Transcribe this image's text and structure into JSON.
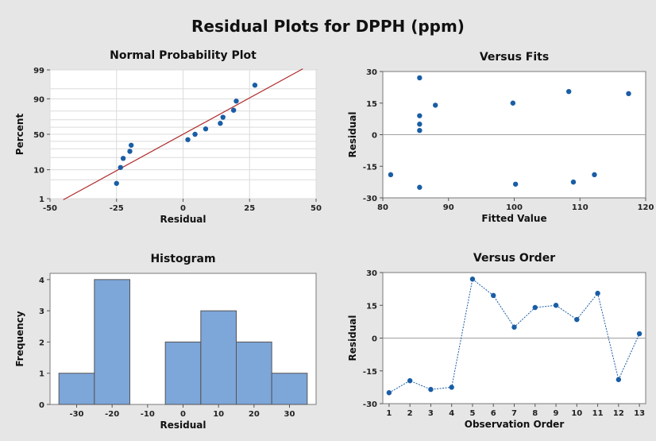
{
  "title": "Residual Plots for DPPH (ppm)",
  "chart_data": [
    {
      "type": "scatter",
      "title": "Normal Probability Plot",
      "xlabel": "Residual",
      "ylabel": "Percent",
      "xlim": [
        -50,
        50
      ],
      "xticks": [
        -50,
        -25,
        0,
        25,
        50
      ],
      "yticks": [
        1,
        10,
        50,
        90,
        99
      ],
      "ytick_labels": [
        "1",
        "10",
        "50",
        "90",
        "99"
      ],
      "scale_y": "normal probability",
      "grid": true,
      "points": [
        {
          "x": -25.0,
          "y": 3.8
        },
        {
          "x": -23.5,
          "y": 11.5
        },
        {
          "x": -22.5,
          "y": 19.2
        },
        {
          "x": -20.0,
          "y": 26.9
        },
        {
          "x": -19.5,
          "y": 34.6
        },
        {
          "x": 1.8,
          "y": 42.3
        },
        {
          "x": 4.5,
          "y": 50.0
        },
        {
          "x": 8.5,
          "y": 57.7
        },
        {
          "x": 14.0,
          "y": 65.4
        },
        {
          "x": 15.0,
          "y": 73.1
        },
        {
          "x": 19.0,
          "y": 80.8
        },
        {
          "x": 20.0,
          "y": 88.5
        },
        {
          "x": 27.0,
          "y": 96.2
        }
      ],
      "fit_line": {
        "x": [
          -45,
          45
        ],
        "y": [
          0.9,
          99.1
        ]
      },
      "colors": {
        "points": "#1a5da6",
        "line": "#b02a2a"
      }
    },
    {
      "type": "scatter",
      "title": "Versus Fits",
      "xlabel": "Fitted Value",
      "ylabel": "Residual",
      "xlim": [
        80,
        120
      ],
      "ylim": [
        -30,
        30
      ],
      "xticks": [
        80,
        90,
        100,
        110,
        120
      ],
      "yticks": [
        -30,
        -15,
        0,
        15,
        30
      ],
      "reference_line_y": 0,
      "points": [
        {
          "x": 81.2,
          "y": -19.0
        },
        {
          "x": 85.6,
          "y": 27.0
        },
        {
          "x": 85.6,
          "y": 9.0
        },
        {
          "x": 85.6,
          "y": 5.0
        },
        {
          "x": 85.6,
          "y": 2.0
        },
        {
          "x": 85.6,
          "y": -25.0
        },
        {
          "x": 88.0,
          "y": 14.0
        },
        {
          "x": 99.8,
          "y": 15.0
        },
        {
          "x": 100.2,
          "y": -23.5
        },
        {
          "x": 108.3,
          "y": 20.5
        },
        {
          "x": 109.0,
          "y": -22.5
        },
        {
          "x": 112.2,
          "y": -19.0
        },
        {
          "x": 117.4,
          "y": 19.5
        }
      ],
      "colors": {
        "points": "#1a5da6",
        "refline": "#a0a0a0"
      }
    },
    {
      "type": "bar",
      "title": "Histogram",
      "xlabel": "Residual",
      "ylabel": "Frequency",
      "xlim": [
        -37.5,
        37.5
      ],
      "ylim": [
        0,
        4.2
      ],
      "xticks": [
        -30,
        -20,
        -10,
        0,
        10,
        20,
        30
      ],
      "yticks": [
        0,
        1,
        2,
        3,
        4
      ],
      "bins": [
        {
          "x0": -35,
          "x1": -25,
          "count": 1
        },
        {
          "x0": -25,
          "x1": -15,
          "count": 4
        },
        {
          "x0": -15,
          "x1": -5,
          "count": 0
        },
        {
          "x0": -5,
          "x1": 5,
          "count": 2
        },
        {
          "x0": 5,
          "x1": 15,
          "count": 3
        },
        {
          "x0": 15,
          "x1": 25,
          "count": 2
        },
        {
          "x0": 25,
          "x1": 35,
          "count": 1
        }
      ],
      "colors": {
        "fill": "#7da6d9",
        "stroke": "#555555"
      }
    },
    {
      "type": "line",
      "title": "Versus Order",
      "xlabel": "Observation Order",
      "ylabel": "Residual",
      "xlim": [
        0.7,
        13.3
      ],
      "ylim": [
        -30,
        30
      ],
      "xticks": [
        1,
        2,
        3,
        4,
        5,
        6,
        7,
        8,
        9,
        10,
        11,
        12,
        13
      ],
      "yticks": [
        -30,
        -15,
        0,
        15,
        30
      ],
      "reference_line_y": 0,
      "x": [
        1,
        2,
        3,
        4,
        5,
        6,
        7,
        8,
        9,
        10,
        11,
        12,
        13
      ],
      "y": [
        -25.0,
        -19.5,
        -23.5,
        -22.5,
        27.0,
        19.5,
        5.0,
        14.0,
        15.0,
        8.5,
        20.5,
        -19.0,
        2.0
      ],
      "colors": {
        "line": "#1a5da6",
        "points": "#1a5da6",
        "refline": "#a0a0a0"
      }
    }
  ]
}
